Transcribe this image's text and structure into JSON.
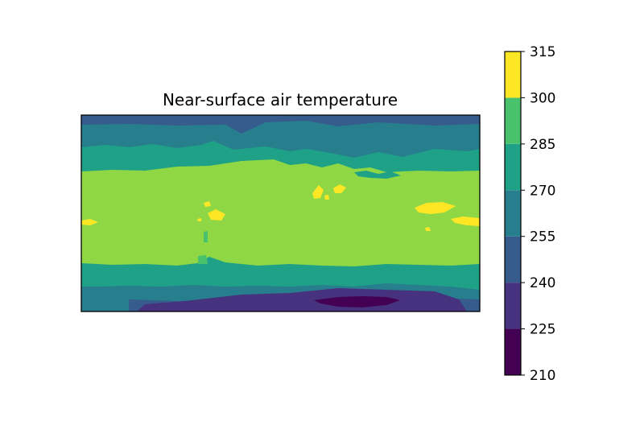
{
  "chart_data": {
    "type": "heatmap",
    "subtype": "filled-contour",
    "title": "Near-surface air temperature",
    "xlabel": "",
    "ylabel": "",
    "grid": false,
    "colorbar": {
      "position": "right",
      "ticks": [
        210,
        225,
        240,
        255,
        270,
        285,
        300,
        315
      ],
      "levels": [
        {
          "range": [
            210,
            225
          ],
          "color": "#440154"
        },
        {
          "range": [
            225,
            240
          ],
          "color": "#46327e"
        },
        {
          "range": [
            240,
            255
          ],
          "color": "#365c8d"
        },
        {
          "range": [
            255,
            270
          ],
          "color": "#277f8e"
        },
        {
          "range": [
            270,
            285
          ],
          "color": "#1fa187"
        },
        {
          "range": [
            285,
            300
          ],
          "color": "#4ac16d"
        },
        {
          "range": [
            300,
            315
          ],
          "color": "#fde725"
        }
      ]
    },
    "colors": {
      "c210": "#440154",
      "c225": "#46327e",
      "c240": "#365c8d",
      "c255": "#277f8e",
      "c270": "#1fa187",
      "c285": "#4ac16d",
      "c285b": "#8fd744",
      "c300": "#fde725"
    }
  }
}
